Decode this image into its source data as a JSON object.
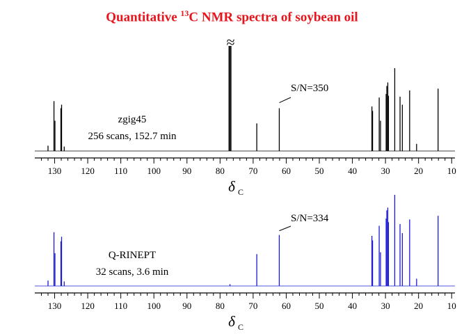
{
  "title": {
    "prefix": "Quantitative ",
    "superscript": "13",
    "suffix": "C NMR spectra of soybean oil"
  },
  "colors": {
    "title": "#e8141b",
    "spectrum_top": "#000000",
    "spectrum_bottom": "#1a1ad0",
    "axis": "#000000"
  },
  "chart_data": [
    {
      "type": "line",
      "name": "top-spectrum",
      "label_method": "zgig45",
      "label_detail": "256 scans, 152.7 min",
      "sn_label": "S/N=350",
      "sn_peak_ppm": 62.1,
      "truncation_mark": "≈",
      "truncated_peak_ppm": 77.0,
      "xlabel": "δ",
      "xlabel_sub": "C",
      "xlim": [
        136,
        9
      ],
      "xticks": [
        130,
        120,
        110,
        100,
        90,
        80,
        70,
        60,
        50,
        40,
        30,
        20,
        10
      ],
      "reversed_x": true,
      "peaks": [
        {
          "ppm": 132.0,
          "height": 0.06
        },
        {
          "ppm": 130.2,
          "height": 0.56
        },
        {
          "ppm": 129.9,
          "height": 0.34
        },
        {
          "ppm": 128.1,
          "height": 0.48
        },
        {
          "ppm": 127.9,
          "height": 0.52
        },
        {
          "ppm": 127.1,
          "height": 0.05
        },
        {
          "ppm": 77.3,
          "height": 1.18
        },
        {
          "ppm": 77.0,
          "height": 1.18
        },
        {
          "ppm": 76.7,
          "height": 1.18
        },
        {
          "ppm": 68.9,
          "height": 0.31
        },
        {
          "ppm": 62.1,
          "height": 0.48
        },
        {
          "ppm": 34.1,
          "height": 0.5
        },
        {
          "ppm": 33.9,
          "height": 0.45
        },
        {
          "ppm": 31.9,
          "height": 0.6
        },
        {
          "ppm": 31.5,
          "height": 0.34
        },
        {
          "ppm": 29.8,
          "height": 0.64
        },
        {
          "ppm": 29.6,
          "height": 0.73
        },
        {
          "ppm": 29.3,
          "height": 0.77
        },
        {
          "ppm": 29.1,
          "height": 0.62
        },
        {
          "ppm": 27.2,
          "height": 0.93
        },
        {
          "ppm": 25.6,
          "height": 0.61
        },
        {
          "ppm": 24.9,
          "height": 0.52
        },
        {
          "ppm": 22.7,
          "height": 0.68
        },
        {
          "ppm": 20.6,
          "height": 0.08
        },
        {
          "ppm": 14.1,
          "height": 0.7
        }
      ]
    },
    {
      "type": "line",
      "name": "bottom-spectrum",
      "label_method": "Q-RINEPT",
      "label_detail": "32 scans, 3.6 min",
      "sn_label": "S/N=334",
      "sn_peak_ppm": 62.1,
      "xlabel": "δ",
      "xlabel_sub": "C",
      "xlim": [
        136,
        9
      ],
      "xticks": [
        130,
        120,
        110,
        100,
        90,
        80,
        70,
        60,
        50,
        40,
        30,
        20,
        10
      ],
      "reversed_x": true,
      "peaks": [
        {
          "ppm": 132.0,
          "height": 0.06
        },
        {
          "ppm": 130.2,
          "height": 0.59
        },
        {
          "ppm": 129.9,
          "height": 0.36
        },
        {
          "ppm": 128.1,
          "height": 0.49
        },
        {
          "ppm": 127.9,
          "height": 0.54
        },
        {
          "ppm": 127.1,
          "height": 0.05
        },
        {
          "ppm": 77.0,
          "height": 0.02
        },
        {
          "ppm": 68.9,
          "height": 0.35
        },
        {
          "ppm": 62.1,
          "height": 0.56
        },
        {
          "ppm": 34.1,
          "height": 0.55
        },
        {
          "ppm": 33.9,
          "height": 0.5
        },
        {
          "ppm": 31.9,
          "height": 0.66
        },
        {
          "ppm": 31.5,
          "height": 0.37
        },
        {
          "ppm": 29.8,
          "height": 0.74
        },
        {
          "ppm": 29.6,
          "height": 0.83
        },
        {
          "ppm": 29.3,
          "height": 0.86
        },
        {
          "ppm": 29.1,
          "height": 0.7
        },
        {
          "ppm": 27.2,
          "height": 1.0
        },
        {
          "ppm": 25.6,
          "height": 0.68
        },
        {
          "ppm": 24.9,
          "height": 0.58
        },
        {
          "ppm": 22.7,
          "height": 0.73
        },
        {
          "ppm": 20.6,
          "height": 0.08
        },
        {
          "ppm": 14.1,
          "height": 0.77
        }
      ]
    }
  ]
}
